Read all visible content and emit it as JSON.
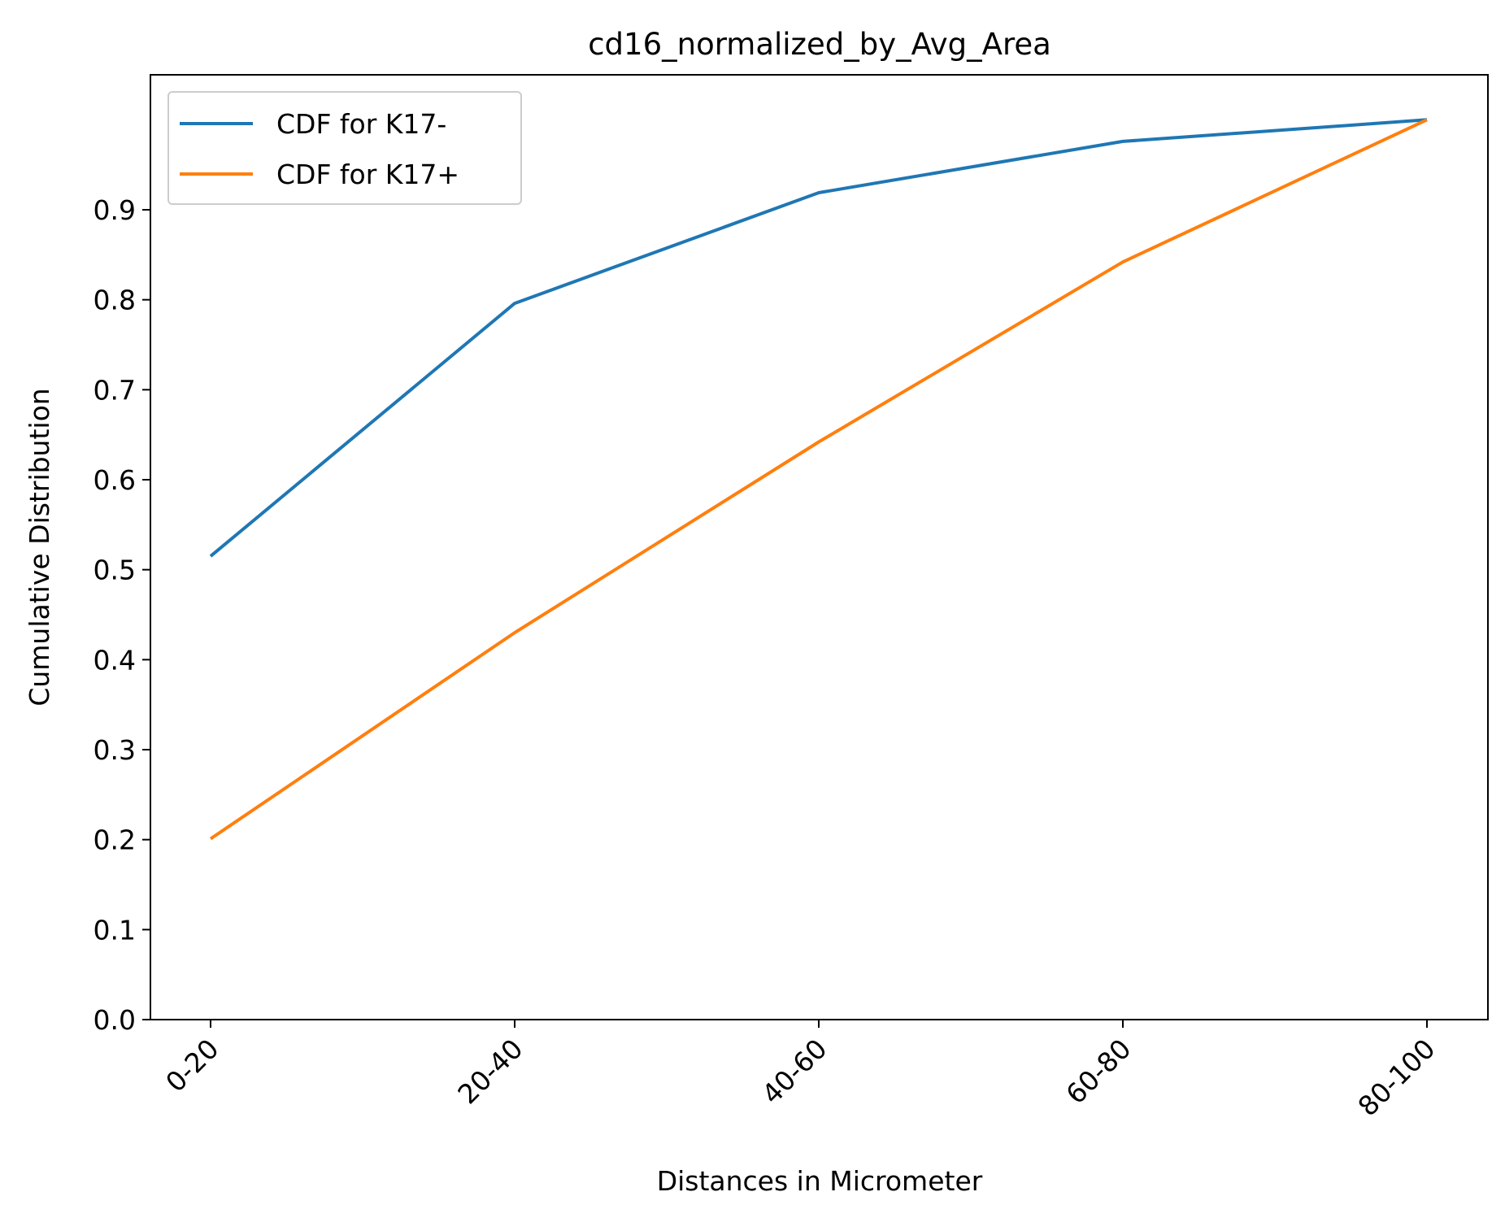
{
  "chart_data": {
    "type": "line",
    "title": "cd16_normalized_by_Avg_Area",
    "xlabel": "Distances in Micrometer",
    "ylabel": "Cumulative Distribution",
    "categories": [
      "0-20",
      "20-40",
      "40-60",
      "60-80",
      "80-100"
    ],
    "yticks": [
      0.0,
      0.1,
      0.2,
      0.3,
      0.4,
      0.5,
      0.6,
      0.7,
      0.8,
      0.9
    ],
    "ytick_labels": [
      "0.0",
      "0.1",
      "0.2",
      "0.3",
      "0.4",
      "0.5",
      "0.6",
      "0.7",
      "0.8",
      "0.9"
    ],
    "ylim": [
      0.0,
      1.05
    ],
    "grid": false,
    "legend_position": "upper-left",
    "xtick_rotation_deg": 45,
    "series": [
      {
        "name": "CDF for K17-",
        "color": "#1f77b4",
        "values": [
          0.515,
          0.796,
          0.919,
          0.976,
          1.0
        ]
      },
      {
        "name": "CDF for K17+",
        "color": "#ff7f0e",
        "values": [
          0.201,
          0.43,
          0.642,
          0.842,
          1.0
        ]
      }
    ]
  }
}
